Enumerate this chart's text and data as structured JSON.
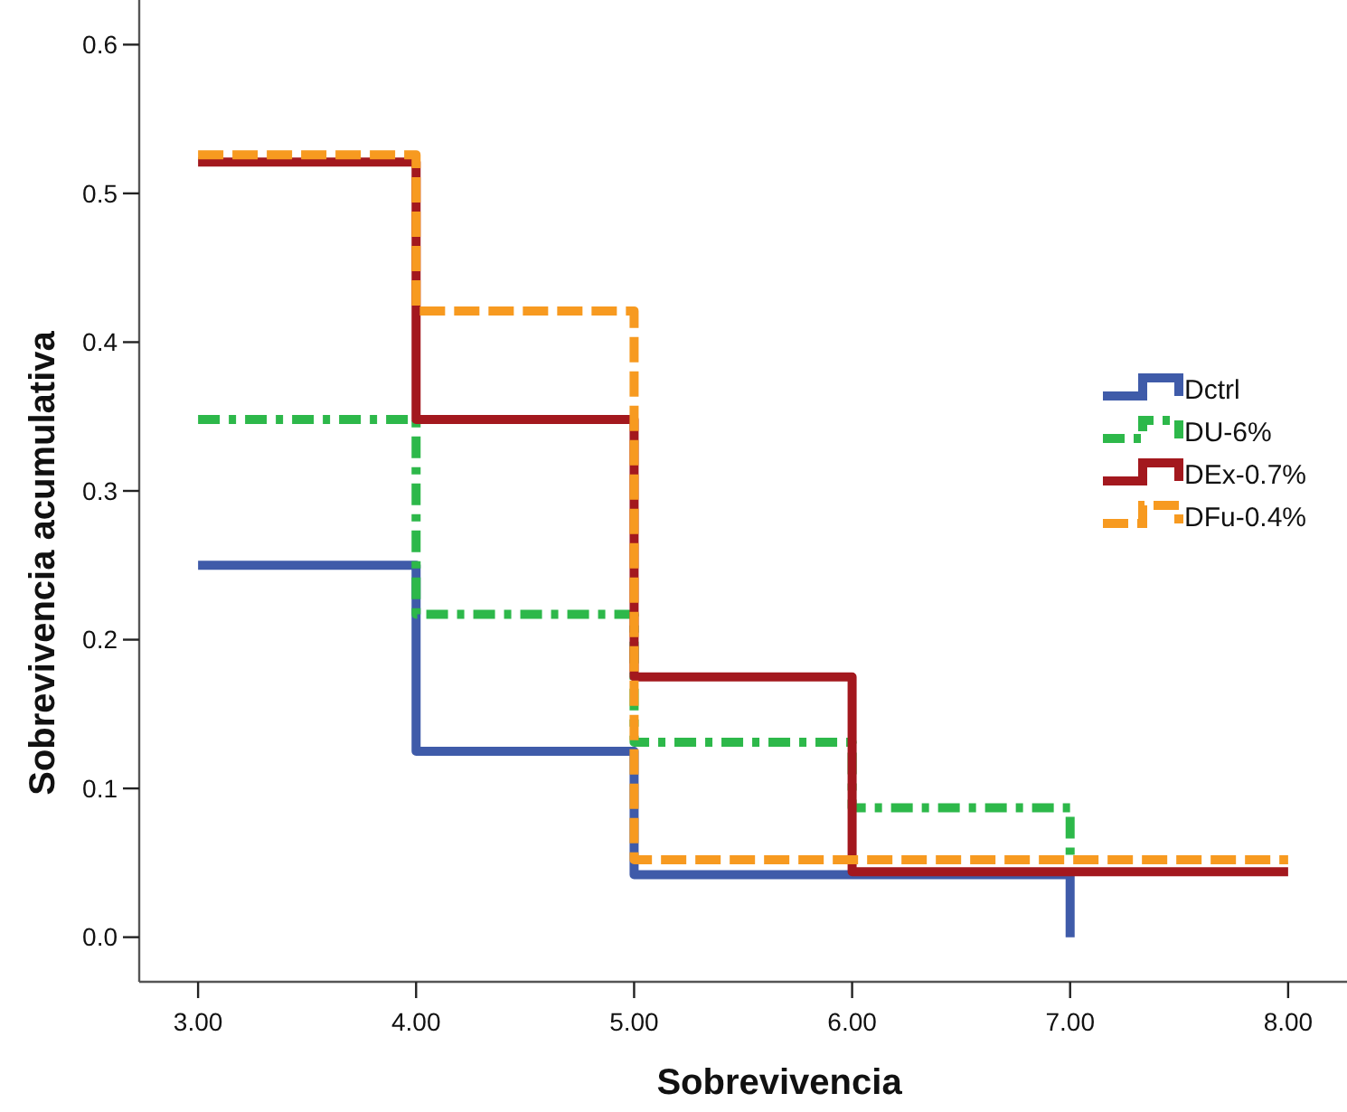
{
  "chart_data": {
    "type": "step",
    "xlabel": "Sobrevivencia",
    "ylabel": "Sobrevivencia acumulativa",
    "xlim": [
      2.73,
      8.27
    ],
    "ylim": [
      -0.03,
      0.63
    ],
    "xticks": [
      {
        "value": 3,
        "label": "3.00"
      },
      {
        "value": 4,
        "label": "4.00"
      },
      {
        "value": 5,
        "label": "5.00"
      },
      {
        "value": 6,
        "label": "6.00"
      },
      {
        "value": 7,
        "label": "7.00"
      },
      {
        "value": 8,
        "label": "8.00"
      }
    ],
    "yticks": [
      {
        "value": 0,
        "label": "0.0"
      },
      {
        "value": 0.1,
        "label": "0.1"
      },
      {
        "value": 0.2,
        "label": "0.2"
      },
      {
        "value": 0.3,
        "label": "0.3"
      },
      {
        "value": 0.4,
        "label": "0.4"
      },
      {
        "value": 0.5,
        "label": "0.5"
      },
      {
        "value": 0.6,
        "label": "0.6"
      }
    ],
    "grid": false,
    "legend": "right",
    "series": [
      {
        "name": "Dctrl",
        "color": "#3f5ba9",
        "line_style": "solid",
        "x": [
          3,
          4,
          5,
          7
        ],
        "values": [
          0.25,
          0.125,
          0.042,
          0
        ]
      },
      {
        "name": "DU-6%",
        "color": "#2db84a",
        "line_style": "dashdot",
        "x": [
          3,
          4,
          5,
          6,
          7
        ],
        "values": [
          0.348,
          0.217,
          0.131,
          0.087,
          0.055
        ]
      },
      {
        "name": "DEx-0.7%",
        "color": "#a3181e",
        "line_style": "solid",
        "x": [
          3,
          4,
          5,
          6,
          8
        ],
        "values": [
          0.521,
          0.348,
          0.175,
          0.044,
          0.044
        ]
      },
      {
        "name": "DFu-0.4%",
        "color": "#f79a20",
        "line_style": "dashed",
        "x": [
          3,
          4,
          5,
          8
        ],
        "values": [
          0.526,
          0.421,
          0.052,
          0.052
        ]
      }
    ]
  }
}
